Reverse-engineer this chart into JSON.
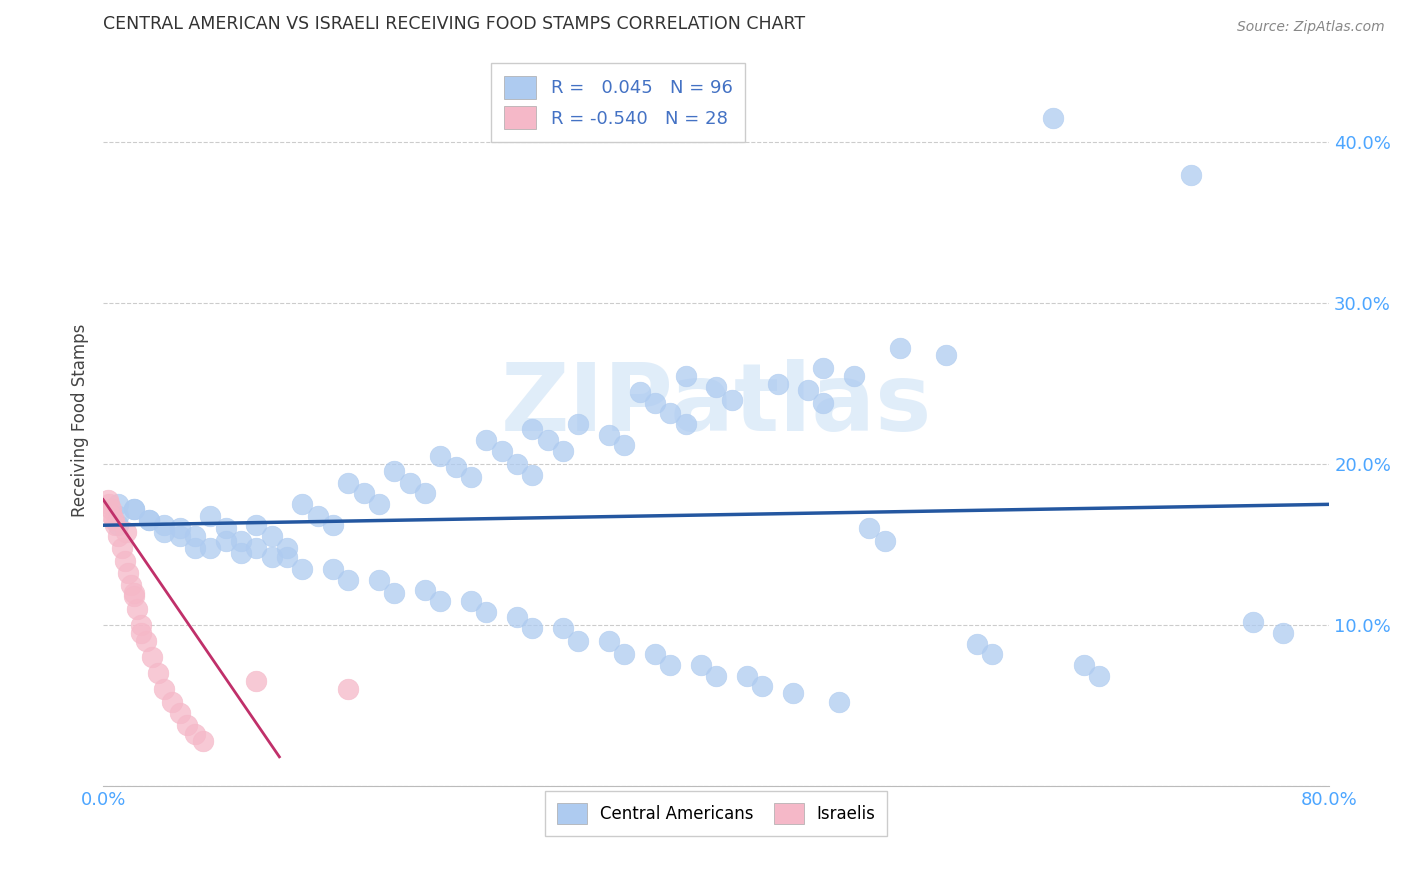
{
  "title": "CENTRAL AMERICAN VS ISRAELI RECEIVING FOOD STAMPS CORRELATION CHART",
  "source": "Source: ZipAtlas.com",
  "tick_color": "#4da6ff",
  "ylabel": "Receiving Food Stamps",
  "watermark": "ZIPatlas",
  "xlim": [
    0,
    0.8
  ],
  "ylim": [
    0,
    0.455
  ],
  "xticks": [
    0.0,
    0.1,
    0.2,
    0.3,
    0.4,
    0.5,
    0.6,
    0.7,
    0.8
  ],
  "yticks": [
    0.0,
    0.1,
    0.2,
    0.3,
    0.4
  ],
  "ytick_labels": [
    "",
    "10.0%",
    "20.0%",
    "30.0%",
    "40.0%"
  ],
  "xtick_labels": [
    "0.0%",
    "",
    "",
    "",
    "",
    "",
    "",
    "",
    "80.0%"
  ],
  "blue_R": " 0.045",
  "blue_N": "96",
  "pink_R": "-0.540",
  "pink_N": "28",
  "blue_color": "#aecbf0",
  "pink_color": "#f5b8c8",
  "blue_line_color": "#2457a0",
  "pink_line_color": "#c0306a",
  "legend_text_color": "#4472c4",
  "grid_color": "#cccccc",
  "background_color": "#ffffff",
  "blue_points_x": [
    0.62,
    0.71,
    0.52,
    0.55,
    0.47,
    0.49,
    0.44,
    0.46,
    0.47,
    0.38,
    0.4,
    0.41,
    0.35,
    0.36,
    0.37,
    0.38,
    0.31,
    0.33,
    0.34,
    0.28,
    0.29,
    0.3,
    0.25,
    0.26,
    0.27,
    0.28,
    0.22,
    0.23,
    0.24,
    0.19,
    0.2,
    0.21,
    0.16,
    0.17,
    0.18,
    0.13,
    0.14,
    0.15,
    0.1,
    0.11,
    0.12,
    0.07,
    0.08,
    0.09,
    0.04,
    0.05,
    0.06,
    0.02,
    0.03,
    0.01,
    0.01,
    0.01,
    0.02,
    0.03,
    0.04,
    0.05,
    0.06,
    0.07,
    0.08,
    0.09,
    0.1,
    0.11,
    0.12,
    0.13,
    0.15,
    0.16,
    0.18,
    0.19,
    0.21,
    0.22,
    0.24,
    0.25,
    0.27,
    0.28,
    0.3,
    0.31,
    0.33,
    0.34,
    0.36,
    0.37,
    0.39,
    0.4,
    0.42,
    0.43,
    0.45,
    0.48,
    0.5,
    0.51,
    0.57,
    0.58,
    0.64,
    0.65,
    0.75,
    0.77
  ],
  "blue_points_y": [
    0.415,
    0.38,
    0.272,
    0.268,
    0.26,
    0.255,
    0.25,
    0.246,
    0.238,
    0.255,
    0.248,
    0.24,
    0.245,
    0.238,
    0.232,
    0.225,
    0.225,
    0.218,
    0.212,
    0.222,
    0.215,
    0.208,
    0.215,
    0.208,
    0.2,
    0.193,
    0.205,
    0.198,
    0.192,
    0.196,
    0.188,
    0.182,
    0.188,
    0.182,
    0.175,
    0.175,
    0.168,
    0.162,
    0.162,
    0.155,
    0.148,
    0.168,
    0.16,
    0.152,
    0.162,
    0.155,
    0.148,
    0.172,
    0.165,
    0.175,
    0.168,
    0.162,
    0.172,
    0.165,
    0.158,
    0.16,
    0.155,
    0.148,
    0.152,
    0.145,
    0.148,
    0.142,
    0.142,
    0.135,
    0.135,
    0.128,
    0.128,
    0.12,
    0.122,
    0.115,
    0.115,
    0.108,
    0.105,
    0.098,
    0.098,
    0.09,
    0.09,
    0.082,
    0.082,
    0.075,
    0.075,
    0.068,
    0.068,
    0.062,
    0.058,
    0.052,
    0.16,
    0.152,
    0.088,
    0.082,
    0.075,
    0.068,
    0.102,
    0.095
  ],
  "pink_points_x": [
    0.003,
    0.004,
    0.005,
    0.006,
    0.007,
    0.008,
    0.01,
    0.012,
    0.014,
    0.016,
    0.018,
    0.02,
    0.022,
    0.025,
    0.028,
    0.032,
    0.036,
    0.04,
    0.045,
    0.05,
    0.055,
    0.06,
    0.065,
    0.015,
    0.02,
    0.025,
    0.1,
    0.16
  ],
  "pink_points_y": [
    0.178,
    0.175,
    0.172,
    0.168,
    0.165,
    0.162,
    0.155,
    0.148,
    0.14,
    0.132,
    0.125,
    0.118,
    0.11,
    0.1,
    0.09,
    0.08,
    0.07,
    0.06,
    0.052,
    0.045,
    0.038,
    0.032,
    0.028,
    0.158,
    0.12,
    0.095,
    0.065,
    0.06
  ],
  "blue_trend_x": [
    0.0,
    0.8
  ],
  "blue_trend_y": [
    0.162,
    0.175
  ],
  "pink_trend_x": [
    0.0,
    0.115
  ],
  "pink_trend_y": [
    0.178,
    0.018
  ]
}
